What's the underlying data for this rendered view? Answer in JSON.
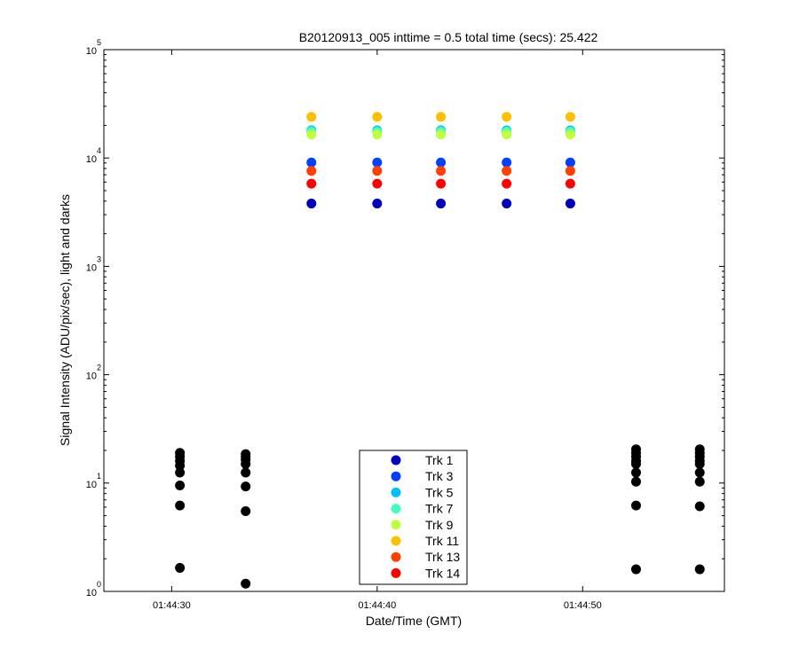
{
  "chart_data": {
    "type": "scatter",
    "title": "B20120913_005 inttime = 0.5 total time (secs): 25.422",
    "xlabel": "Date/Time (GMT)",
    "ylabel": "Signal Intensity (ADU/pix/sec), light and darks",
    "y_scale": "log",
    "ylim": [
      1,
      100000
    ],
    "xlim": [
      "01:44:26.7",
      "01:44:56.9"
    ],
    "grid": false,
    "legend_position": "bottom-center",
    "x_ticks": [
      "01:44:30",
      "01:44:40",
      "01:44:50"
    ],
    "y_ticks": [
      {
        "base": "10",
        "exp": "0",
        "value": 1
      },
      {
        "base": "10",
        "exp": "1",
        "value": 10
      },
      {
        "base": "10",
        "exp": "2",
        "value": 100
      },
      {
        "base": "10",
        "exp": "3",
        "value": 1000
      },
      {
        "base": "10",
        "exp": "4",
        "value": 10000
      },
      {
        "base": "10",
        "exp": "5",
        "value": 100000
      }
    ],
    "light_x": [
      "01:44:36.8",
      "01:44:40.0",
      "01:44:43.1",
      "01:44:46.3",
      "01:44:49.4"
    ],
    "series": [
      {
        "name": "Trk 1",
        "color": "#0000bf",
        "value": 3800
      },
      {
        "name": "Trk 3",
        "color": "#0040ff",
        "value": 9100
      },
      {
        "name": "Trk 5",
        "color": "#00bfff",
        "value": 18000
      },
      {
        "name": "Trk 7",
        "color": "#40ffbf",
        "value": 17500
      },
      {
        "name": "Trk 9",
        "color": "#bfff40",
        "value": 16500
      },
      {
        "name": "Trk 11",
        "color": "#ffbf00",
        "value": 24000
      },
      {
        "name": "Trk 13",
        "color": "#ff4000",
        "value": 7600
      },
      {
        "name": "Trk 14",
        "color": "#ff0000",
        "value": 5800
      }
    ],
    "dark_color": "#000000",
    "darks": [
      {
        "x": "01:44:30.4",
        "values": [
          19,
          17.5,
          16,
          14.5,
          12.5,
          9.5,
          6.2,
          1.65
        ]
      },
      {
        "x": "01:44:33.6",
        "values": [
          18.5,
          17.5,
          16.5,
          15,
          12.5,
          9.3,
          5.5,
          1.18
        ]
      },
      {
        "x": "01:44:52.6",
        "values": [
          20.5,
          19,
          17.5,
          16,
          15,
          12.5,
          10.3,
          6.2,
          1.6
        ]
      },
      {
        "x": "01:44:55.7",
        "values": [
          20.5,
          19,
          17.5,
          16,
          15,
          12.5,
          10.3,
          6.1,
          1.6
        ]
      }
    ]
  }
}
